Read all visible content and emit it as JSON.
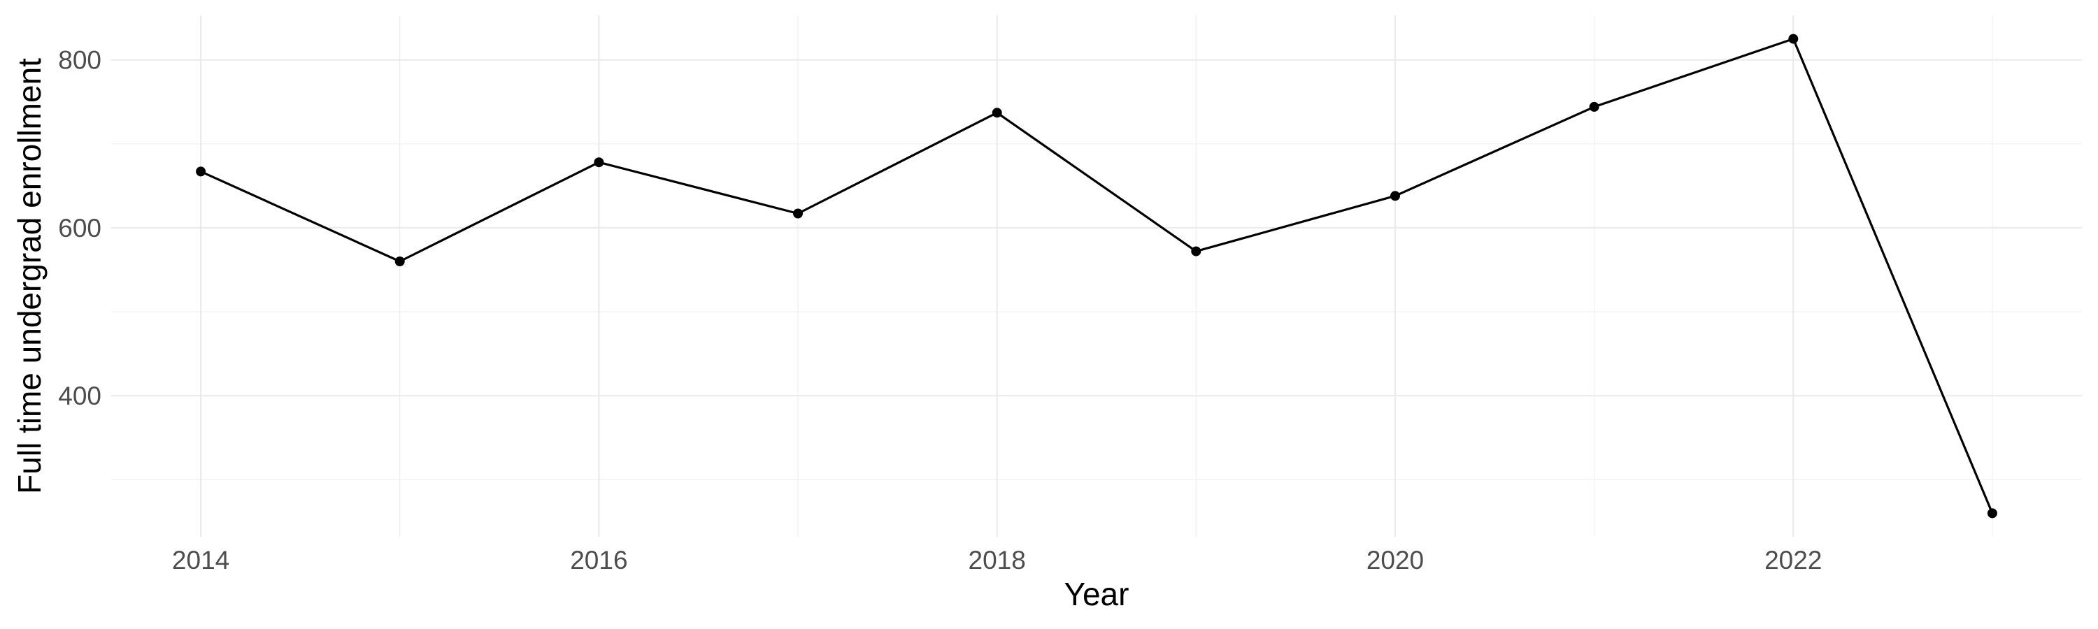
{
  "page": {
    "background_color": "#FFFFFF"
  },
  "chart_data": {
    "type": "line",
    "title": "",
    "xlabel": "Year",
    "ylabel": "Full time undergrad enrollment",
    "x": [
      2014,
      2015,
      2016,
      2017,
      2018,
      2019,
      2020,
      2021,
      2022,
      2023
    ],
    "values": [
      667,
      560,
      678,
      617,
      737,
      572,
      638,
      744,
      825,
      260
    ],
    "series_name": "Full time undergrad enrollment",
    "x_tick_labels": [
      "2014",
      "2016",
      "2018",
      "2020",
      "2022"
    ],
    "x_ticks": [
      2014,
      2016,
      2018,
      2020,
      2022
    ],
    "x_minor_ticks": [
      2015,
      2017,
      2019,
      2021,
      2023
    ],
    "y_tick_labels": [
      "400",
      "600",
      "800"
    ],
    "y_ticks": [
      400,
      600,
      800
    ],
    "y_minor_ticks": [
      300,
      500,
      700
    ],
    "xlim": [
      2013.55,
      2023.45
    ],
    "ylim": [
      232,
      853
    ],
    "grid": "both",
    "legend_position": "none",
    "style": {
      "line_color": "#000000",
      "point_color": "#000000",
      "major_grid_color": "#EBEBEB",
      "minor_grid_color": "#EFEFEF",
      "tick_label_color": "#4D4D4D",
      "axis_title_color": "#000000",
      "panel_background": "#FFFFFF"
    }
  }
}
